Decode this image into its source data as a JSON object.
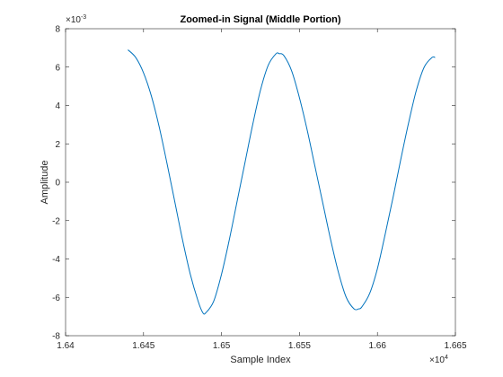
{
  "chart_data": {
    "type": "line",
    "title": "Zoomed-in Signal (Middle Portion)",
    "xlabel": "Sample Index",
    "ylabel": "Amplitude",
    "x_multiplier": {
      "base": "×10",
      "exp": "4"
    },
    "y_multiplier": {
      "base": "×10",
      "exp": "-3"
    },
    "xlim": [
      16400,
      16650
    ],
    "ylim": [
      -0.008,
      0.008
    ],
    "x_ticks": [
      16400,
      16450,
      16500,
      16550,
      16600,
      16650
    ],
    "x_tick_labels": [
      "1.64",
      "1.645",
      "1.65",
      "1.655",
      "1.66",
      "1.665"
    ],
    "y_ticks": [
      -0.008,
      -0.006,
      -0.004,
      -0.002,
      0,
      0.002,
      0.004,
      0.006,
      0.008
    ],
    "y_tick_labels": [
      "-8",
      "-6",
      "-4",
      "-2",
      "0",
      "2",
      "4",
      "6",
      "8"
    ],
    "grid": false,
    "series": [
      {
        "color": "#0072BD",
        "x": [
          16440,
          16445,
          16450,
          16455,
          16460,
          16465,
          16470,
          16475,
          16480,
          16485,
          16488,
          16490,
          16495,
          16500,
          16505,
          16510,
          16515,
          16520,
          16525,
          16530,
          16535,
          16537,
          16540,
          16545,
          16550,
          16555,
          16560,
          16565,
          16570,
          16575,
          16580,
          16585,
          16588,
          16590,
          16595,
          16600,
          16605,
          16610,
          16615,
          16620,
          16625,
          16630,
          16635,
          16637
        ],
        "y": [
          0.0069,
          0.0065,
          0.0057,
          0.0045,
          0.0029,
          0.001,
          -0.001,
          -0.003,
          -0.0048,
          -0.0062,
          -0.0068,
          -0.0068,
          -0.0062,
          -0.0048,
          -0.003,
          -0.001,
          0.001,
          0.003,
          0.0048,
          0.0061,
          0.0067,
          0.0067,
          0.0066,
          0.0058,
          0.0044,
          0.0027,
          0.0008,
          -0.0011,
          -0.003,
          -0.0047,
          -0.006,
          -0.0066,
          -0.0066,
          -0.0065,
          -0.0058,
          -0.0045,
          -0.0027,
          -0.0008,
          0.0012,
          0.0031,
          0.0048,
          0.006,
          0.0065,
          0.0065
        ]
      }
    ]
  }
}
